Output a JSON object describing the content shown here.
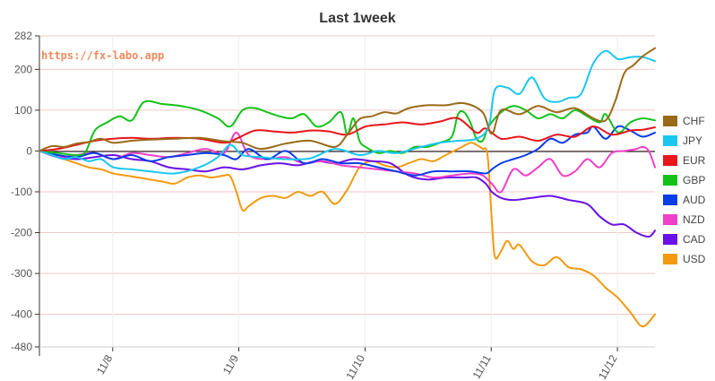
{
  "watermark": "https://fx-labo.app",
  "chart_data": {
    "type": "line",
    "title": "Last 1week",
    "xlabel": "",
    "ylabel": "",
    "ylim": [
      -480,
      282
    ],
    "yticks": [
      282,
      200,
      100,
      0,
      -100,
      -200,
      -300,
      -400,
      -480
    ],
    "x_range": [
      0,
      100
    ],
    "xticks": [
      {
        "x": 11.9,
        "label": "11/8"
      },
      {
        "x": 32.4,
        "label": "11/9"
      },
      {
        "x": 52.9,
        "label": "11/10"
      },
      {
        "x": 73.4,
        "label": "11/11"
      },
      {
        "x": 93.9,
        "label": "11/12"
      }
    ],
    "grid": true,
    "legend_position": "right",
    "series": [
      {
        "name": "CHF",
        "color": "#9a6a18",
        "x": [
          0,
          2,
          4,
          6,
          8,
          10,
          12,
          15,
          18,
          22,
          26,
          30,
          33,
          36,
          40,
          44,
          48,
          50,
          52,
          54,
          56,
          58,
          60,
          63,
          66,
          69,
          72,
          73.5,
          75,
          78,
          81,
          84,
          87,
          90,
          92,
          93.5,
          95,
          96.5,
          98,
          100
        ],
        "y": [
          0,
          12,
          10,
          18,
          22,
          30,
          20,
          25,
          28,
          30,
          32,
          24,
          20,
          5,
          18,
          25,
          10,
          40,
          78,
          85,
          95,
          92,
          105,
          112,
          112,
          117,
          95,
          42,
          100,
          90,
          110,
          95,
          105,
          80,
          75,
          120,
          190,
          210,
          232,
          252
        ]
      },
      {
        "name": "JPY",
        "color": "#1ac6f0",
        "x": [
          0,
          2,
          4,
          6,
          8,
          10,
          12,
          15,
          18,
          22,
          26,
          29,
          31,
          33,
          36,
          40,
          44,
          48,
          52,
          55,
          58,
          62,
          65,
          68,
          71,
          73,
          74,
          76,
          78,
          80,
          82,
          84,
          86,
          88,
          90,
          92,
          94,
          96,
          98,
          100
        ],
        "y": [
          0,
          -10,
          -20,
          -15,
          -25,
          -20,
          -40,
          -45,
          -50,
          -55,
          -40,
          -15,
          15,
          -10,
          -15,
          -20,
          -18,
          5,
          -10,
          0,
          -5,
          10,
          20,
          25,
          30,
          60,
          150,
          155,
          140,
          180,
          130,
          120,
          130,
          140,
          215,
          245,
          225,
          230,
          230,
          220
        ]
      },
      {
        "name": "EUR",
        "color": "#e8151b",
        "x": [
          0,
          3,
          6,
          9,
          12,
          15,
          18,
          22,
          26,
          30,
          32,
          35,
          38,
          41,
          44,
          47,
          50,
          53,
          56,
          59,
          62,
          65,
          68,
          71,
          72.5,
          75,
          78,
          81,
          84,
          87,
          90,
          93,
          96,
          98,
          100
        ],
        "y": [
          0,
          5,
          15,
          25,
          30,
          32,
          30,
          32,
          30,
          20,
          30,
          50,
          48,
          45,
          50,
          48,
          40,
          60,
          65,
          70,
          65,
          72,
          80,
          45,
          55,
          30,
          35,
          25,
          40,
          35,
          60,
          40,
          50,
          52,
          58
        ]
      },
      {
        "name": "GBP",
        "color": "#12c21a",
        "x": [
          0,
          3,
          6,
          7.5,
          9,
          11,
          13,
          15,
          17,
          20,
          23,
          26,
          29,
          31,
          33,
          35,
          37,
          39,
          41,
          43,
          45,
          47,
          49,
          50,
          51,
          52,
          53,
          55,
          57,
          59,
          61,
          63,
          65,
          67,
          68,
          69,
          70,
          71,
          72,
          73,
          75,
          77,
          79,
          81,
          83,
          85,
          87,
          89,
          91,
          92,
          94,
          96,
          98,
          100
        ],
        "y": [
          0,
          -5,
          -10,
          -2,
          50,
          70,
          85,
          75,
          120,
          115,
          110,
          100,
          80,
          60,
          100,
          105,
          95,
          85,
          80,
          90,
          60,
          70,
          95,
          40,
          80,
          25,
          10,
          -5,
          0,
          -5,
          10,
          10,
          20,
          35,
          90,
          95,
          70,
          30,
          25,
          60,
          95,
          110,
          100,
          80,
          90,
          80,
          100,
          85,
          70,
          90,
          45,
          70,
          80,
          75
        ]
      },
      {
        "name": "AUD",
        "color": "#0a3cea",
        "x": [
          0,
          3,
          6,
          9,
          12,
          15,
          18,
          21,
          24,
          27,
          30,
          32,
          34,
          37,
          40,
          43,
          46,
          49,
          52,
          55,
          58,
          61,
          64,
          67,
          70,
          72.5,
          73.5,
          75,
          77,
          79,
          81,
          83,
          85,
          87,
          89,
          90,
          92,
          94,
          96,
          98,
          100
        ],
        "y": [
          0,
          -10,
          -15,
          -5,
          -20,
          -10,
          -25,
          -15,
          -10,
          -5,
          -10,
          -20,
          5,
          -20,
          0,
          -30,
          -20,
          -30,
          -30,
          -40,
          -50,
          -60,
          -50,
          -50,
          -50,
          -55,
          -45,
          -30,
          -20,
          -10,
          5,
          30,
          20,
          40,
          45,
          60,
          30,
          60,
          50,
          35,
          45
        ]
      },
      {
        "name": "NZD",
        "color": "#f040c8",
        "x": [
          0,
          3,
          6,
          9,
          12,
          15,
          18,
          21,
          24,
          27,
          30,
          32,
          34,
          37,
          40,
          43,
          46,
          49,
          52,
          55,
          58,
          61,
          64,
          67,
          70,
          72,
          73.5,
          75,
          77,
          79,
          81,
          83,
          85,
          87,
          89,
          91,
          93,
          95,
          97,
          98,
          99,
          100
        ],
        "y": [
          0,
          -15,
          -10,
          -5,
          -20,
          -5,
          -10,
          -15,
          -5,
          5,
          -5,
          45,
          -10,
          -20,
          -15,
          -30,
          -25,
          -35,
          -40,
          -45,
          -50,
          -55,
          -65,
          -60,
          -55,
          -60,
          -80,
          -100,
          -45,
          -60,
          -40,
          -20,
          -60,
          -50,
          -20,
          -40,
          -5,
          0,
          5,
          10,
          0,
          -40
        ]
      },
      {
        "name": "CAD",
        "color": "#6a10e8",
        "x": [
          0,
          3,
          6,
          9,
          12,
          15,
          18,
          21,
          24,
          27,
          30,
          33,
          36,
          39,
          42,
          45,
          48,
          51,
          54,
          57,
          60,
          63,
          66,
          69,
          71,
          72.5,
          73.5,
          75,
          77,
          80,
          83,
          86,
          89,
          91,
          93,
          95,
          97,
          99,
          100
        ],
        "y": [
          0,
          -15,
          -20,
          -15,
          -10,
          -20,
          -25,
          -40,
          -45,
          -50,
          -40,
          -45,
          -35,
          -30,
          -35,
          -25,
          -30,
          -20,
          -25,
          -30,
          -60,
          -70,
          -65,
          -65,
          -65,
          -80,
          -100,
          -115,
          -120,
          -115,
          -110,
          -120,
          -130,
          -160,
          -180,
          -180,
          -200,
          -210,
          -195
        ]
      },
      {
        "name": "USD",
        "color": "#f39a10",
        "x": [
          0,
          2,
          4,
          6,
          8,
          10,
          12,
          14,
          16,
          18,
          20,
          22,
          24,
          26,
          28,
          30,
          31,
          32,
          33,
          34,
          36,
          38,
          40,
          42,
          44,
          46,
          48,
          50,
          52,
          54,
          56,
          58,
          60,
          62,
          64,
          66,
          68,
          70,
          71,
          72,
          72.8,
          73.5,
          74,
          75,
          76,
          77,
          78,
          80,
          82,
          84,
          86,
          88,
          90,
          92,
          94,
          96,
          98,
          100
        ],
        "y": [
          0,
          -10,
          -20,
          -30,
          -40,
          -45,
          -55,
          -60,
          -65,
          -70,
          -75,
          -80,
          -65,
          -60,
          -65,
          -60,
          -62,
          -100,
          -145,
          -135,
          -115,
          -110,
          -115,
          -100,
          -110,
          -100,
          -130,
          -95,
          -40,
          -25,
          -35,
          -40,
          -30,
          -20,
          -25,
          -10,
          5,
          20,
          15,
          5,
          -10,
          -170,
          -260,
          -245,
          -220,
          -240,
          -230,
          -270,
          -280,
          -260,
          -285,
          -290,
          -305,
          -335,
          -360,
          -395,
          -430,
          -400
        ]
      }
    ]
  }
}
